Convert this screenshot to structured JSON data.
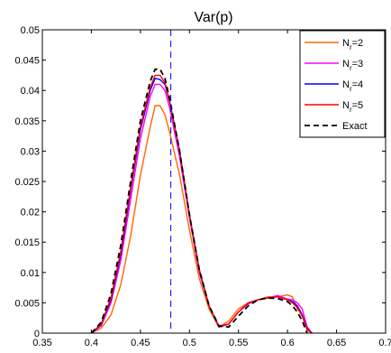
{
  "chart_data": {
    "type": "line",
    "title": "Var(p)",
    "xlabel": "",
    "ylabel": "",
    "xlim": [
      0.35,
      0.7
    ],
    "ylim": [
      0,
      0.05
    ],
    "xticks": [
      "0.35",
      "0.4",
      "0.45",
      "0.5",
      "0.55",
      "0.6",
      "0.65",
      "0.7"
    ],
    "yticks": [
      "0",
      "0.005",
      "0.01",
      "0.015",
      "0.02",
      "0.025",
      "0.03",
      "0.035",
      "0.04",
      "0.045",
      "0.05"
    ],
    "grid": false,
    "legend_position": "top-right",
    "vertical_line": {
      "x": 0.481,
      "color": "#0000ff",
      "style": "dashed"
    },
    "series": [
      {
        "name": "Nr=2",
        "legend_main": "N",
        "legend_sub": "r",
        "legend_tail": "=2",
        "color": "#ff6600",
        "style": "solid",
        "x": [
          0.4,
          0.41,
          0.42,
          0.43,
          0.44,
          0.45,
          0.46,
          0.465,
          0.47,
          0.475,
          0.48,
          0.49,
          0.5,
          0.51,
          0.52,
          0.53,
          0.54,
          0.55,
          0.56,
          0.57,
          0.58,
          0.59,
          0.6,
          0.605,
          0.61,
          0.615,
          0.62,
          0.625
        ],
        "y": [
          0.0,
          0.0008,
          0.003,
          0.008,
          0.016,
          0.026,
          0.034,
          0.0375,
          0.0375,
          0.036,
          0.033,
          0.026,
          0.017,
          0.009,
          0.004,
          0.001,
          0.002,
          0.004,
          0.005,
          0.0055,
          0.006,
          0.006,
          0.0063,
          0.006,
          0.004,
          0.003,
          0.0005,
          0.0
        ]
      },
      {
        "name": "Nr=3",
        "legend_main": "N",
        "legend_sub": "r",
        "legend_tail": "=3",
        "color": "#ff00ff",
        "style": "solid",
        "x": [
          0.4,
          0.41,
          0.42,
          0.43,
          0.44,
          0.45,
          0.46,
          0.465,
          0.47,
          0.475,
          0.48,
          0.49,
          0.5,
          0.51,
          0.52,
          0.53,
          0.54,
          0.55,
          0.56,
          0.57,
          0.58,
          0.59,
          0.6,
          0.605,
          0.61,
          0.615,
          0.62,
          0.625
        ],
        "y": [
          0.0,
          0.0012,
          0.005,
          0.012,
          0.022,
          0.032,
          0.039,
          0.041,
          0.041,
          0.04,
          0.037,
          0.029,
          0.019,
          0.01,
          0.0045,
          0.0012,
          0.0015,
          0.0035,
          0.0048,
          0.0055,
          0.0058,
          0.0062,
          0.0056,
          0.0055,
          0.005,
          0.004,
          0.001,
          0.0
        ]
      },
      {
        "name": "Nr=4",
        "legend_main": "N",
        "legend_sub": "r",
        "legend_tail": "=4",
        "color": "#0000ff",
        "style": "solid",
        "x": [
          0.4,
          0.41,
          0.42,
          0.43,
          0.44,
          0.45,
          0.46,
          0.465,
          0.47,
          0.475,
          0.48,
          0.49,
          0.5,
          0.51,
          0.52,
          0.53,
          0.54,
          0.55,
          0.56,
          0.57,
          0.58,
          0.59,
          0.6,
          0.605,
          0.61,
          0.615,
          0.62,
          0.625
        ],
        "y": [
          0.0,
          0.0014,
          0.0055,
          0.013,
          0.0235,
          0.0335,
          0.04,
          0.042,
          0.0418,
          0.041,
          0.038,
          0.03,
          0.0195,
          0.0105,
          0.0045,
          0.001,
          0.0015,
          0.0035,
          0.005,
          0.0055,
          0.0058,
          0.006,
          0.0055,
          0.0052,
          0.0045,
          0.003,
          0.0008,
          0.0
        ]
      },
      {
        "name": "Nr=5",
        "legend_main": "N",
        "legend_sub": "r",
        "legend_tail": "=5",
        "color": "#ff0000",
        "style": "solid",
        "x": [
          0.4,
          0.41,
          0.42,
          0.43,
          0.44,
          0.45,
          0.46,
          0.465,
          0.47,
          0.475,
          0.48,
          0.49,
          0.5,
          0.51,
          0.52,
          0.53,
          0.54,
          0.55,
          0.56,
          0.57,
          0.58,
          0.59,
          0.6,
          0.605,
          0.61,
          0.615,
          0.62,
          0.625
        ],
        "y": [
          0.0,
          0.0015,
          0.0058,
          0.0135,
          0.024,
          0.034,
          0.0405,
          0.0425,
          0.0425,
          0.0413,
          0.038,
          0.03,
          0.0195,
          0.0105,
          0.0045,
          0.001,
          0.0015,
          0.0035,
          0.005,
          0.0055,
          0.0058,
          0.006,
          0.0055,
          0.005,
          0.0042,
          0.0028,
          0.0006,
          0.0
        ]
      },
      {
        "name": "Exact",
        "legend_main": "Exact",
        "legend_sub": "",
        "legend_tail": "",
        "color": "#000000",
        "style": "dashed",
        "x": [
          0.4,
          0.41,
          0.42,
          0.43,
          0.44,
          0.45,
          0.46,
          0.465,
          0.47,
          0.475,
          0.48,
          0.49,
          0.5,
          0.51,
          0.52,
          0.53,
          0.54,
          0.55,
          0.56,
          0.57,
          0.58,
          0.59,
          0.6,
          0.605,
          0.61,
          0.615,
          0.62
        ],
        "y": [
          0.0,
          0.0018,
          0.0065,
          0.0145,
          0.025,
          0.035,
          0.0415,
          0.0435,
          0.0435,
          0.042,
          0.0385,
          0.03,
          0.0195,
          0.0105,
          0.0045,
          0.0012,
          0.001,
          0.0028,
          0.0045,
          0.0055,
          0.0058,
          0.0057,
          0.0052,
          0.0045,
          0.0035,
          0.002,
          0.0
        ]
      }
    ]
  }
}
